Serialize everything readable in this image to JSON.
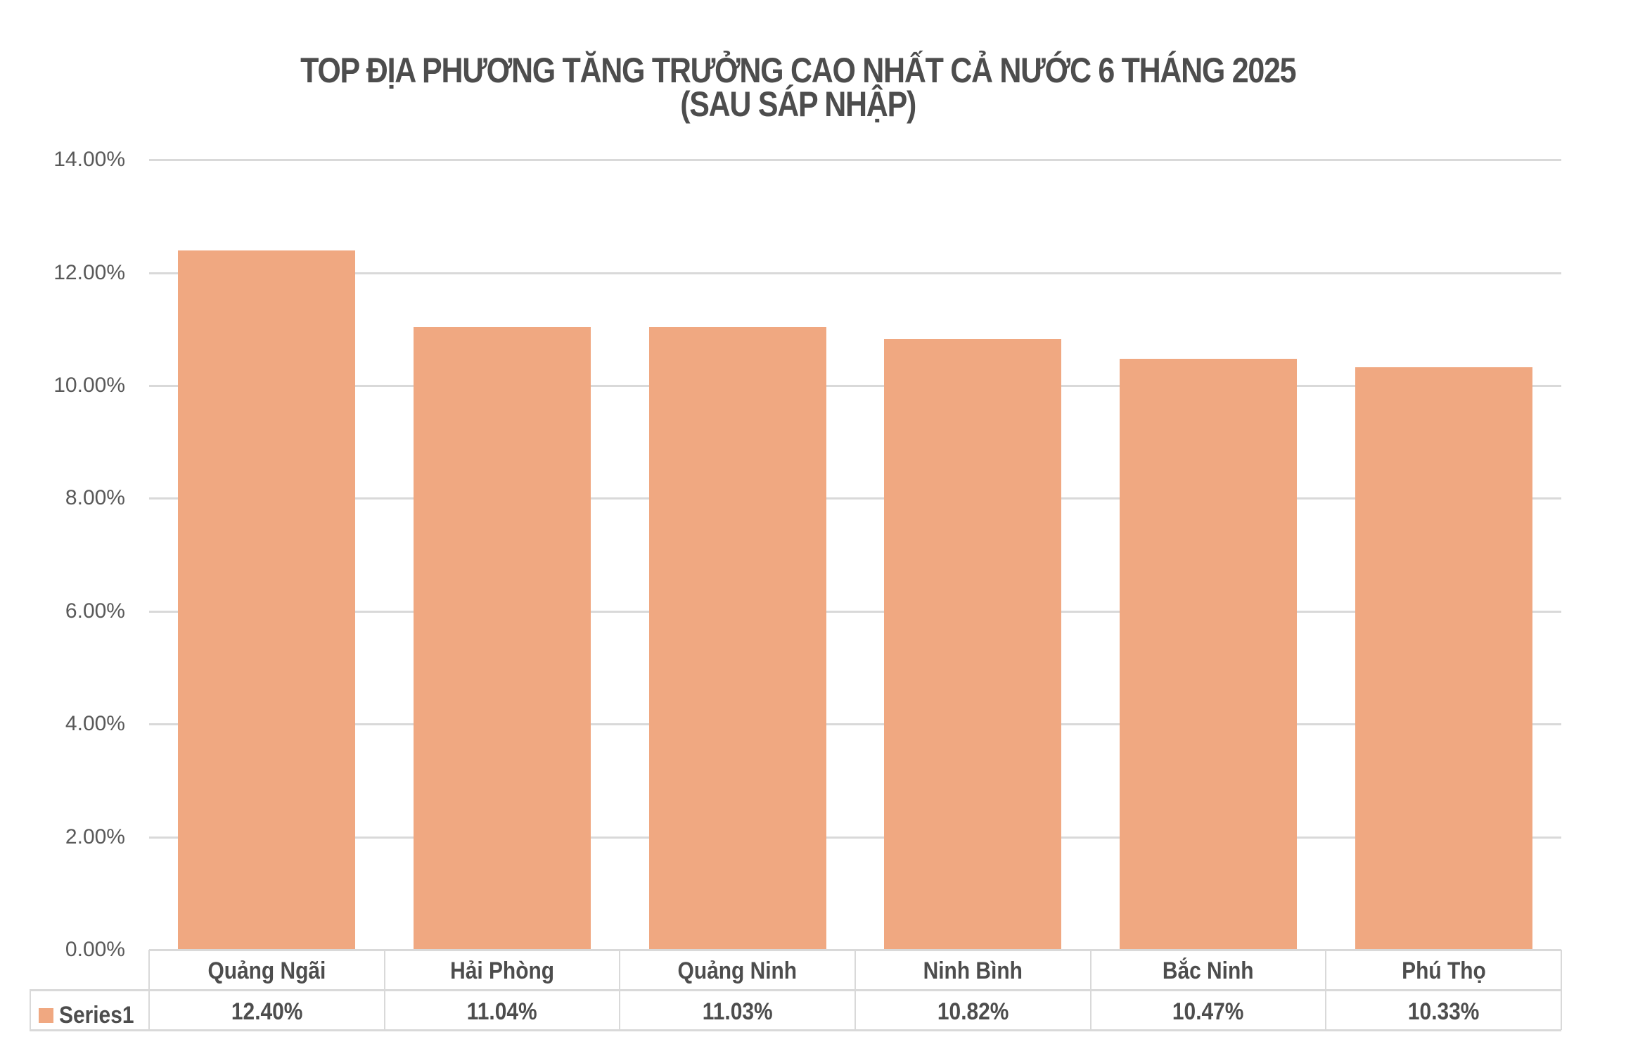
{
  "title": {
    "line1": "TOP ĐỊA PHƯƠNG TĂNG TRƯỞNG CAO NHẤT CẢ NƯỚC 6 THÁNG 2025",
    "line2": "(SAU SÁP NHẬP)"
  },
  "y_axis": {
    "ticks": [
      "14.00%",
      "12.00%",
      "10.00%",
      "8.00%",
      "6.00%",
      "4.00%",
      "2.00%",
      "0.00%"
    ]
  },
  "data_table": {
    "series_name": "Series1",
    "categories": [
      "Quảng Ngãi",
      "Hải Phòng",
      "Quảng Ninh",
      "Ninh Bình",
      "Bắc Ninh",
      "Phú Thọ"
    ],
    "values": [
      "12.40%",
      "11.04%",
      "11.03%",
      "10.82%",
      "10.47%",
      "10.33%"
    ]
  },
  "colors": {
    "bar": "#f0a881",
    "grid": "#d9d9d9",
    "text": "#4d4d4d",
    "axis_text": "#595959"
  },
  "chart_data": {
    "type": "bar",
    "title": "TOP ĐỊA PHƯƠNG TĂNG TRƯỞNG CAO NHẤT CẢ NƯỚC 6 THÁNG 2025 (SAU SÁP NHẬP)",
    "categories": [
      "Quảng Ngãi",
      "Hải Phòng",
      "Quảng Ninh",
      "Ninh Bình",
      "Bắc Ninh",
      "Phú Thọ"
    ],
    "series": [
      {
        "name": "Series1",
        "values": [
          12.4,
          11.04,
          11.03,
          10.82,
          10.47,
          10.33
        ],
        "color": "#f0a881"
      }
    ],
    "xlabel": "",
    "ylabel": "",
    "ylim": [
      0,
      14
    ],
    "y_ticks": [
      0,
      2,
      4,
      6,
      8,
      10,
      12,
      14
    ],
    "y_tick_format": "0.00%",
    "grid": true,
    "legend": "data table with legend key (bottom)"
  }
}
